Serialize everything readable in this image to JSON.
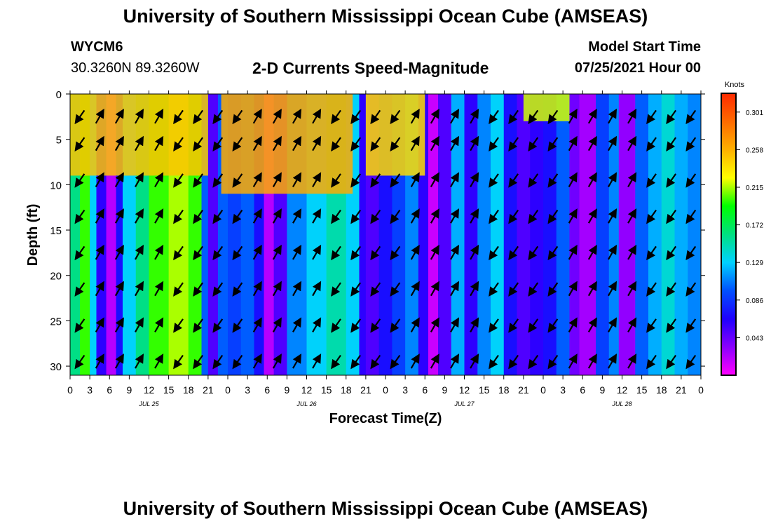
{
  "header": {
    "title_top": "University of Southern Mississippi Ocean Cube (AMSEAS)",
    "station_id": "WYCM6",
    "station_coords": "30.3260N  89.3260W",
    "plot_title": "2-D Currents Speed-Magnitude",
    "model_start_label": "Model Start Time",
    "model_start_value": "07/25/2021 Hour 00",
    "title_bottom": "University of Southern Mississippi Ocean Cube (AMSEAS)"
  },
  "chart_data": {
    "type": "heatmap",
    "xlabel": "Forecast Time(Z)",
    "ylabel": "Depth (ft)",
    "x_tick_labels": [
      "0",
      "3",
      "6",
      "9",
      "12",
      "15",
      "18",
      "21",
      "0",
      "3",
      "6",
      "9",
      "12",
      "15",
      "18",
      "21",
      "0",
      "3",
      "6",
      "9",
      "12",
      "15",
      "18",
      "21",
      "0",
      "3",
      "6",
      "9",
      "12",
      "15",
      "18",
      "21",
      "0"
    ],
    "date_labels": [
      {
        "label": "JUL 25",
        "hour": 12
      },
      {
        "label": "JUL 26",
        "hour": 36
      },
      {
        "label": "JUL 27",
        "hour": 60
      },
      {
        "label": "JUL 28",
        "hour": 84
      }
    ],
    "xlim_hours": [
      0,
      96
    ],
    "y_ticks": [
      0,
      5,
      10,
      15,
      20,
      25,
      30
    ],
    "ylim_ft": [
      0,
      31
    ],
    "colorbar": {
      "unit_label": "Knots",
      "tick_labels": [
        "0.301",
        "0.258",
        "0.215",
        "0.172",
        "0.129",
        "0.086",
        "0.043"
      ],
      "range": [
        0,
        0.3225
      ],
      "colors": [
        "#ff00ff",
        "#8a00ff",
        "#1e00ff",
        "#0050ff",
        "#00d2ff",
        "#00e080",
        "#00ff00",
        "#ffff00",
        "#ffb000",
        "#ff6a00",
        "#ff2a00"
      ]
    },
    "speed_columns": [
      {
        "hour": 0,
        "value": 0.16
      },
      {
        "hour": 1.5,
        "value": 0.2
      },
      {
        "hour": 3,
        "value": 0.13
      },
      {
        "hour": 4,
        "value": 0.06
      },
      {
        "hour": 5.5,
        "value": 0.02
      },
      {
        "hour": 7,
        "value": 0.07
      },
      {
        "hour": 8,
        "value": 0.13
      },
      {
        "hour": 10,
        "value": 0.16
      },
      {
        "hour": 12,
        "value": 0.2
      },
      {
        "hour": 15,
        "value": 0.215
      },
      {
        "hour": 18,
        "value": 0.2
      },
      {
        "hour": 20,
        "value": 0.1
      },
      {
        "hour": 21,
        "value": 0.05
      },
      {
        "hour": 22.5,
        "value": 0.1
      },
      {
        "hour": 24,
        "value": 0.09
      },
      {
        "hour": 26,
        "value": 0.1
      },
      {
        "hour": 28,
        "value": 0.07
      },
      {
        "hour": 29.5,
        "value": 0.02
      },
      {
        "hour": 31,
        "value": 0.05
      },
      {
        "hour": 33,
        "value": 0.11
      },
      {
        "hour": 36,
        "value": 0.13
      },
      {
        "hour": 39,
        "value": 0.15
      },
      {
        "hour": 42,
        "value": 0.13
      },
      {
        "hour": 44,
        "value": 0.06
      },
      {
        "hour": 45,
        "value": 0.05
      },
      {
        "hour": 47,
        "value": 0.07
      },
      {
        "hour": 49,
        "value": 0.09
      },
      {
        "hour": 51,
        "value": 0.11
      },
      {
        "hour": 53,
        "value": 0.06
      },
      {
        "hour": 54.5,
        "value": 0.015
      },
      {
        "hour": 56,
        "value": 0.05
      },
      {
        "hour": 58,
        "value": 0.12
      },
      {
        "hour": 60,
        "value": 0.06
      },
      {
        "hour": 62,
        "value": 0.11
      },
      {
        "hour": 64,
        "value": 0.13
      },
      {
        "hour": 66,
        "value": 0.07
      },
      {
        "hour": 68,
        "value": 0.05
      },
      {
        "hour": 70,
        "value": 0.06
      },
      {
        "hour": 72,
        "value": 0.07
      },
      {
        "hour": 74,
        "value": 0.1
      },
      {
        "hour": 76,
        "value": 0.04
      },
      {
        "hour": 77.5,
        "value": 0.025
      },
      {
        "hour": 80,
        "value": 0.09
      },
      {
        "hour": 82,
        "value": 0.11
      },
      {
        "hour": 83.5,
        "value": 0.03
      },
      {
        "hour": 86,
        "value": 0.1
      },
      {
        "hour": 88,
        "value": 0.12
      },
      {
        "hour": 90,
        "value": 0.14
      },
      {
        "hour": 92,
        "value": 0.12
      },
      {
        "hour": 94,
        "value": 0.11
      },
      {
        "hour": 96,
        "value": 0.06
      }
    ],
    "surface_patches": [
      {
        "hour_start": 0,
        "hour_end": 21,
        "depth_to": 9,
        "value": 0.25
      },
      {
        "hour_start": 23,
        "hour_end": 43,
        "depth_to": 11,
        "value": 0.26
      },
      {
        "hour_start": 45,
        "hour_end": 54,
        "depth_to": 9,
        "value": 0.24
      },
      {
        "hour_start": 69,
        "hour_end": 76,
        "depth_to": 3,
        "value": 0.22
      }
    ],
    "vector_rows_ft": [
      2.5,
      5.5,
      9.5,
      13.5,
      17.5,
      21.5,
      25.5,
      29.5
    ]
  }
}
